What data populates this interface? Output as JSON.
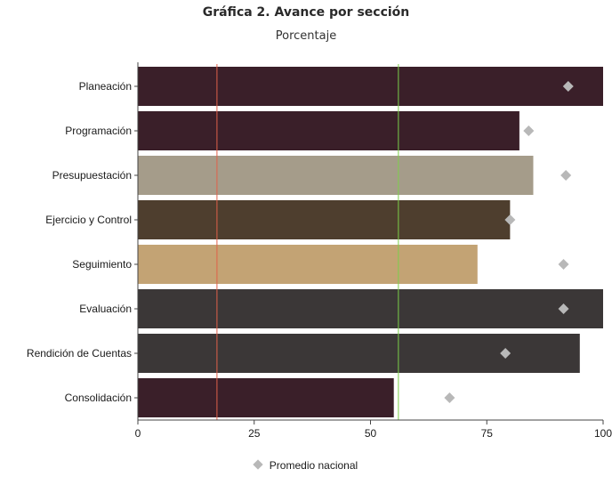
{
  "chart_data": {
    "type": "bar",
    "orientation": "horizontal",
    "title": "Gráfica 2. Avance por sección",
    "subtitle": "Porcentaje",
    "categories": [
      "Planeación",
      "Programación",
      "Presupuestación",
      "Ejercicio y Control",
      "Seguimiento",
      "Evaluación",
      "Rendición de Cuentas",
      "Consolidación"
    ],
    "values": [
      100,
      82,
      85,
      80,
      73,
      100,
      95,
      55
    ],
    "bar_colors": [
      "#3a1f29",
      "#3a1f29",
      "#a59c8a",
      "#4e3e2e",
      "#c3a374",
      "#3b3737",
      "#3b3737",
      "#3a1f29"
    ],
    "national_average": {
      "name": "Promedio nacional",
      "values": [
        92.5,
        84,
        92,
        80,
        91.5,
        91.5,
        79,
        67
      ],
      "color": "#b8b8b8"
    },
    "reference_lines": [
      {
        "x": 17,
        "color": "#e0604a"
      },
      {
        "x": 56,
        "color": "#7ccf4a"
      }
    ],
    "xlim": [
      0,
      100
    ],
    "xticks": [
      0,
      25,
      50,
      75,
      100
    ],
    "legend_position": "bottom"
  }
}
